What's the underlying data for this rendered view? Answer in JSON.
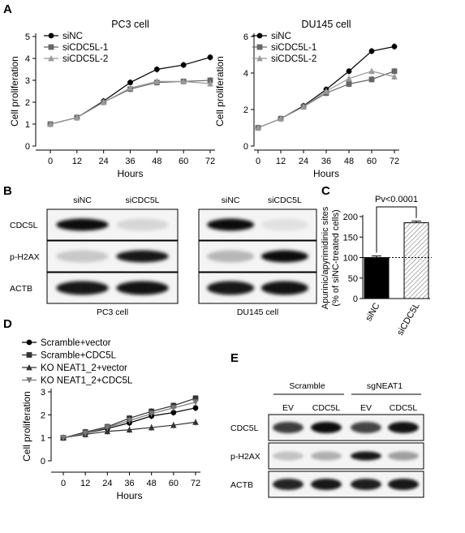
{
  "panels": {
    "A": "A",
    "B": "B",
    "C": "C",
    "D": "D",
    "E": "E"
  },
  "chart_data": [
    {
      "id": "A1",
      "type": "line",
      "title": "PC3 cell",
      "xlabel": "Hours",
      "ylabel": "Cell proliferation",
      "x": [
        0,
        12,
        24,
        36,
        48,
        60,
        72
      ],
      "xlim": [
        0,
        72
      ],
      "ylim": [
        0,
        5
      ],
      "yticks": [
        0,
        1,
        2,
        3,
        4,
        5
      ],
      "series": [
        {
          "name": "siNC",
          "marker": "circle",
          "color": "#000000",
          "values": [
            1.0,
            1.3,
            2.05,
            2.9,
            3.5,
            3.7,
            4.05
          ]
        },
        {
          "name": "siCDC5L-1",
          "marker": "square",
          "color": "#666666",
          "values": [
            1.0,
            1.3,
            2.0,
            2.6,
            2.9,
            2.95,
            3.0
          ]
        },
        {
          "name": "siCDC5L-2",
          "marker": "triangle",
          "color": "#999999",
          "values": [
            1.0,
            1.3,
            2.0,
            2.65,
            2.95,
            2.95,
            2.85
          ]
        }
      ]
    },
    {
      "id": "A2",
      "type": "line",
      "title": "DU145 cell",
      "xlabel": "Hours",
      "ylabel": "Cell proliferation",
      "x": [
        0,
        12,
        24,
        36,
        48,
        60,
        72
      ],
      "xlim": [
        0,
        72
      ],
      "ylim": [
        0,
        6
      ],
      "yticks": [
        0,
        2,
        4,
        6
      ],
      "series": [
        {
          "name": "siNC",
          "marker": "circle",
          "color": "#000000",
          "values": [
            1.0,
            1.5,
            2.2,
            3.1,
            4.1,
            5.2,
            5.45
          ]
        },
        {
          "name": "siCDC5L-1",
          "marker": "square",
          "color": "#666666",
          "values": [
            1.0,
            1.5,
            2.15,
            2.9,
            3.4,
            3.65,
            4.1
          ]
        },
        {
          "name": "siCDC5L-2",
          "marker": "triangle",
          "color": "#999999",
          "values": [
            1.0,
            1.5,
            2.15,
            3.0,
            3.7,
            4.1,
            3.8
          ]
        }
      ]
    },
    {
      "id": "C",
      "type": "bar",
      "ylabel_line1": "Apurinic/apyrimidinic sites",
      "ylabel_line2": "(% of siNC-treated cells)",
      "categories": [
        "siNC",
        "siCDC5L"
      ],
      "values": [
        100,
        185
      ],
      "ylim": [
        0,
        200
      ],
      "yticks": [
        0,
        50,
        100,
        150,
        200
      ],
      "reference_line": 100,
      "annotation": "Pv<0.0001"
    },
    {
      "id": "D",
      "type": "line",
      "xlabel": "Hours",
      "ylabel": "Cell proliferation",
      "x": [
        0,
        12,
        24,
        36,
        48,
        60,
        72
      ],
      "xlim": [
        0,
        72
      ],
      "ylim": [
        0,
        3
      ],
      "yticks": [
        0,
        1,
        2,
        3
      ],
      "series": [
        {
          "name": "Scramble+vector",
          "marker": "circle",
          "color": "#000000",
          "values": [
            1.0,
            1.2,
            1.4,
            1.65,
            1.95,
            2.1,
            2.3
          ]
        },
        {
          "name": "Scramble+CDC5L",
          "marker": "square",
          "color": "#333333",
          "values": [
            1.0,
            1.25,
            1.48,
            1.85,
            2.15,
            2.4,
            2.72
          ]
        },
        {
          "name": "KO NEAT1_2+vector",
          "marker": "triangle",
          "color": "#333333",
          "values": [
            1.0,
            1.15,
            1.28,
            1.35,
            1.45,
            1.55,
            1.68
          ]
        },
        {
          "name": "KO NEAT1_2+CDC5L",
          "marker": "triangle-down",
          "color": "#777777",
          "values": [
            1.0,
            1.2,
            1.45,
            1.75,
            2.05,
            2.3,
            2.55
          ]
        }
      ]
    }
  ],
  "blot_B": {
    "groups": [
      {
        "columns": [
          "siNC",
          "siCDC5L"
        ],
        "caption": "PC3 cell"
      },
      {
        "columns": [
          "siNC",
          "siCDC5L"
        ],
        "caption": "DU145 cell"
      }
    ],
    "rows": [
      "CDC5L",
      "p-H2AX",
      "ACTB"
    ]
  },
  "blot_E": {
    "groups": [
      "Scramble",
      "sgNEAT1"
    ],
    "columns": [
      "EV",
      "CDC5L",
      "EV",
      "CDC5L"
    ],
    "rows": [
      "CDC5L",
      "p-H2AX",
      "ACTB"
    ]
  }
}
